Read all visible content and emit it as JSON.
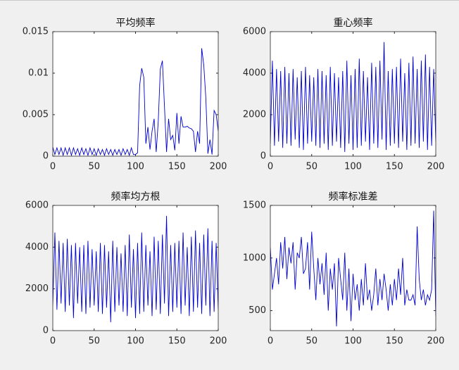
{
  "chart_data": [
    {
      "type": "line",
      "title": "平均频率",
      "color": "#0000cd",
      "xlim": [
        0,
        200
      ],
      "xticks": [
        0,
        50,
        100,
        150,
        200
      ],
      "ylim": [
        0,
        0.015
      ],
      "yticks": [
        0,
        0.005,
        0.01,
        0.015
      ],
      "x": [
        0,
        2.5,
        5,
        7.5,
        10,
        12.5,
        15,
        17.5,
        20,
        22.5,
        25,
        27.5,
        30,
        32.5,
        35,
        37.5,
        40,
        42.5,
        45,
        47.5,
        50,
        52.5,
        55,
        57.5,
        60,
        62.5,
        65,
        67.5,
        70,
        72.5,
        75,
        77.5,
        80,
        82.5,
        85,
        87.5,
        90,
        92.5,
        95,
        97.5,
        100,
        102.5,
        105,
        107.5,
        110,
        112.5,
        115,
        117.5,
        120,
        122.5,
        125,
        127.5,
        130,
        132.5,
        135,
        137.5,
        140,
        142.5,
        145,
        147.5,
        150,
        152.5,
        155,
        157.5,
        160,
        162.5,
        165,
        167.5,
        170,
        172.5,
        175,
        177.5,
        180,
        182.5,
        185,
        187.5,
        190,
        192.5,
        195,
        197.5,
        200
      ],
      "values": [
        0.0011,
        0.0002,
        0.001,
        0.0002,
        0.001,
        0.0001,
        0.001,
        0.0002,
        0.001,
        0.0001,
        0.001,
        0.0002,
        0.0009,
        0.0001,
        0.001,
        0.0002,
        0.0009,
        0.0001,
        0.001,
        0.0002,
        0.0009,
        0.0001,
        0.0009,
        0.0002,
        0.0008,
        0.0001,
        0.0009,
        0.0002,
        0.0008,
        0.0001,
        0.0008,
        0.0002,
        0.0008,
        0.0001,
        0.0009,
        0.0002,
        0.0008,
        0.0001,
        0.001,
        0.0002,
        0.0002,
        0.0004,
        0.0085,
        0.0106,
        0.0095,
        0.0015,
        0.0035,
        0.0008,
        0.003,
        0.0045,
        0.0005,
        0.0042,
        0.0105,
        0.0115,
        0.006,
        0.0005,
        0.0045,
        0.002,
        0.0025,
        0.0007,
        0.0052,
        0.0015,
        0.0048,
        0.0035,
        0.0035,
        0.0036,
        0.0034,
        0.0033,
        0.003,
        0.0005,
        0.003,
        0.0015,
        0.013,
        0.011,
        0.007,
        0.0003,
        0.002,
        0.0002,
        0.0055,
        0.005,
        0.003
      ]
    },
    {
      "type": "line",
      "title": "重心频率",
      "color": "#0000cd",
      "xlim": [
        0,
        200
      ],
      "xticks": [
        0,
        50,
        100,
        150,
        200
      ],
      "ylim": [
        0,
        6000
      ],
      "yticks": [
        0,
        2000,
        4000,
        6000
      ],
      "x": [
        0,
        2.5,
        5,
        7.5,
        10,
        12.5,
        15,
        17.5,
        20,
        22.5,
        25,
        27.5,
        30,
        32.5,
        35,
        37.5,
        40,
        42.5,
        45,
        47.5,
        50,
        52.5,
        55,
        57.5,
        60,
        62.5,
        65,
        67.5,
        70,
        72.5,
        75,
        77.5,
        80,
        82.5,
        85,
        87.5,
        90,
        92.5,
        95,
        97.5,
        100,
        102.5,
        105,
        107.5,
        110,
        112.5,
        115,
        117.5,
        120,
        122.5,
        125,
        127.5,
        130,
        132.5,
        135,
        137.5,
        140,
        142.5,
        145,
        147.5,
        150,
        152.5,
        155,
        157.5,
        160,
        162.5,
        165,
        167.5,
        170,
        172.5,
        175,
        177.5,
        180,
        182.5,
        185,
        187.5,
        190,
        192.5,
        195,
        197.5,
        200
      ],
      "values": [
        600,
        4600,
        500,
        4200,
        700,
        4100,
        400,
        4300,
        600,
        4000,
        500,
        4200,
        800,
        3800,
        400,
        4100,
        300,
        4300,
        600,
        3900,
        700,
        3800,
        500,
        4200,
        400,
        4100,
        600,
        3900,
        300,
        4300,
        500,
        4000,
        700,
        3800,
        400,
        4100,
        200,
        4600,
        600,
        3900,
        300,
        4200,
        400,
        4700,
        500,
        4100,
        700,
        3800,
        300,
        4500,
        600,
        4300,
        400,
        4600,
        800,
        5500,
        300,
        4100,
        500,
        4200,
        600,
        4300,
        400,
        4700,
        700,
        4000,
        300,
        4500,
        500,
        4800,
        600,
        4200,
        400,
        4600,
        700,
        4900,
        300,
        4300,
        500,
        4200,
        700
      ]
    },
    {
      "type": "line",
      "title": "频率均方根",
      "color": "#0000cd",
      "xlim": [
        0,
        200
      ],
      "xticks": [
        0,
        50,
        100,
        150,
        200
      ],
      "ylim": [
        0,
        6000
      ],
      "yticks": [
        0,
        2000,
        4000,
        6000
      ],
      "x": [
        0,
        2.5,
        5,
        7.5,
        10,
        12.5,
        15,
        17.5,
        20,
        22.5,
        25,
        27.5,
        30,
        32.5,
        35,
        37.5,
        40,
        42.5,
        45,
        47.5,
        50,
        52.5,
        55,
        57.5,
        60,
        62.5,
        65,
        67.5,
        70,
        72.5,
        75,
        77.5,
        80,
        82.5,
        85,
        87.5,
        90,
        92.5,
        95,
        97.5,
        100,
        102.5,
        105,
        107.5,
        110,
        112.5,
        115,
        117.5,
        120,
        122.5,
        125,
        127.5,
        130,
        132.5,
        135,
        137.5,
        140,
        142.5,
        145,
        147.5,
        150,
        152.5,
        155,
        157.5,
        160,
        162.5,
        165,
        167.5,
        170,
        172.5,
        175,
        177.5,
        180,
        182.5,
        185,
        187.5,
        190,
        192.5,
        195,
        197.5,
        200
      ],
      "values": [
        1200,
        4700,
        1000,
        4300,
        1300,
        4200,
        900,
        4400,
        1200,
        4100,
        600,
        4200,
        1300,
        4000,
        900,
        4100,
        800,
        4300,
        1100,
        3900,
        1200,
        3800,
        900,
        4200,
        800,
        4100,
        1100,
        3800,
        400,
        4300,
        900,
        4000,
        1200,
        3700,
        900,
        4100,
        700,
        4600,
        1100,
        3900,
        600,
        4200,
        800,
        4700,
        900,
        4100,
        1200,
        3800,
        700,
        4500,
        1000,
        4300,
        800,
        4600,
        1300,
        5500,
        700,
        4100,
        900,
        4200,
        1100,
        4300,
        800,
        4700,
        1200,
        4000,
        700,
        4500,
        900,
        4800,
        1100,
        4200,
        800,
        4600,
        1200,
        4900,
        700,
        4300,
        900,
        4200,
        1000
      ]
    },
    {
      "type": "line",
      "title": "频率标准差",
      "color": "#0000cd",
      "xlim": [
        0,
        200
      ],
      "xticks": [
        0,
        50,
        100,
        150,
        200
      ],
      "ylim": [
        310,
        1500
      ],
      "yticks": [
        500,
        1000,
        1500
      ],
      "x": [
        0,
        2.5,
        5,
        7.5,
        10,
        12.5,
        15,
        17.5,
        20,
        22.5,
        25,
        27.5,
        30,
        32.5,
        35,
        37.5,
        40,
        42.5,
        45,
        47.5,
        50,
        52.5,
        55,
        57.5,
        60,
        62.5,
        65,
        67.5,
        70,
        72.5,
        75,
        77.5,
        80,
        82.5,
        85,
        87.5,
        90,
        92.5,
        95,
        97.5,
        100,
        102.5,
        105,
        107.5,
        110,
        112.5,
        115,
        117.5,
        120,
        122.5,
        125,
        127.5,
        130,
        132.5,
        135,
        137.5,
        140,
        142.5,
        145,
        147.5,
        150,
        152.5,
        155,
        157.5,
        160,
        162.5,
        165,
        167.5,
        170,
        172.5,
        175,
        177.5,
        180,
        182.5,
        185,
        187.5,
        190,
        192.5,
        195,
        197.5,
        200
      ],
      "values": [
        1100,
        700,
        850,
        1000,
        750,
        1150,
        900,
        1200,
        800,
        1100,
        950,
        1150,
        700,
        1050,
        1000,
        1200,
        850,
        900,
        1150,
        700,
        1250,
        900,
        600,
        1000,
        750,
        950,
        650,
        1050,
        500,
        900,
        700,
        950,
        350,
        1000,
        800,
        600,
        1050,
        500,
        900,
        400,
        850,
        600,
        750,
        500,
        800,
        550,
        950,
        600,
        700,
        500,
        650,
        900,
        550,
        800,
        600,
        850,
        700,
        500,
        750,
        550,
        800,
        600,
        900,
        650,
        1000,
        550,
        700,
        600,
        600,
        650,
        550,
        1300,
        800,
        600,
        700,
        550,
        650,
        600,
        700,
        1450,
        450
      ]
    }
  ]
}
